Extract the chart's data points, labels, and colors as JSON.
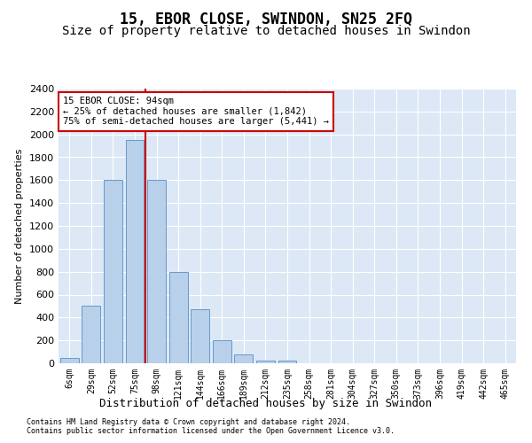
{
  "title": "15, EBOR CLOSE, SWINDON, SN25 2FQ",
  "subtitle": "Size of property relative to detached houses in Swindon",
  "xlabel": "Distribution of detached houses by size in Swindon",
  "ylabel": "Number of detached properties",
  "categories": [
    "6sqm",
    "29sqm",
    "52sqm",
    "75sqm",
    "98sqm",
    "121sqm",
    "144sqm",
    "166sqm",
    "189sqm",
    "212sqm",
    "235sqm",
    "258sqm",
    "281sqm",
    "304sqm",
    "327sqm",
    "350sqm",
    "373sqm",
    "396sqm",
    "419sqm",
    "442sqm",
    "465sqm"
  ],
  "values": [
    50,
    500,
    1600,
    1950,
    1600,
    800,
    470,
    200,
    80,
    25,
    20,
    0,
    0,
    0,
    0,
    0,
    0,
    0,
    0,
    0,
    0
  ],
  "bar_color": "#b8d0ea",
  "bar_edge_color": "#6699cc",
  "red_line_index": 3.5,
  "ylim": [
    0,
    2400
  ],
  "yticks": [
    0,
    200,
    400,
    600,
    800,
    1000,
    1200,
    1400,
    1600,
    1800,
    2000,
    2200,
    2400
  ],
  "annotation_text": "15 EBOR CLOSE: 94sqm\n← 25% of detached houses are smaller (1,842)\n75% of semi-detached houses are larger (5,441) →",
  "annotation_box_edge": "#cc0000",
  "footer1": "Contains HM Land Registry data © Crown copyright and database right 2024.",
  "footer2": "Contains public sector information licensed under the Open Government Licence v3.0.",
  "title_fontsize": 12,
  "subtitle_fontsize": 10,
  "grid_color": "#ffffff",
  "bg_color": "#dce8f5"
}
